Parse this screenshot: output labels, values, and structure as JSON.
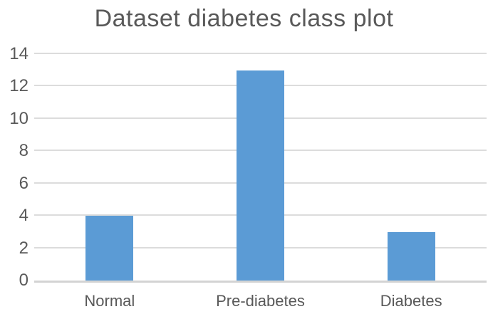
{
  "chart_data": {
    "type": "bar",
    "title": "Dataset diabetes class plot",
    "categories": [
      "Normal",
      "Pre-diabetes",
      "Diabetes"
    ],
    "values": [
      4,
      13,
      3
    ],
    "xlabel": "",
    "ylabel": "",
    "ylim": [
      0,
      14
    ],
    "yticks": [
      0,
      2,
      4,
      6,
      8,
      10,
      12,
      14
    ],
    "grid": "horizontal-only",
    "legend": "none",
    "bar_color": "#5B9BD5",
    "text_color": "#595959",
    "gridline_color": "#DCDCDC",
    "axis_line_color": "#D3D3D3",
    "background": "#FFFFFF"
  }
}
